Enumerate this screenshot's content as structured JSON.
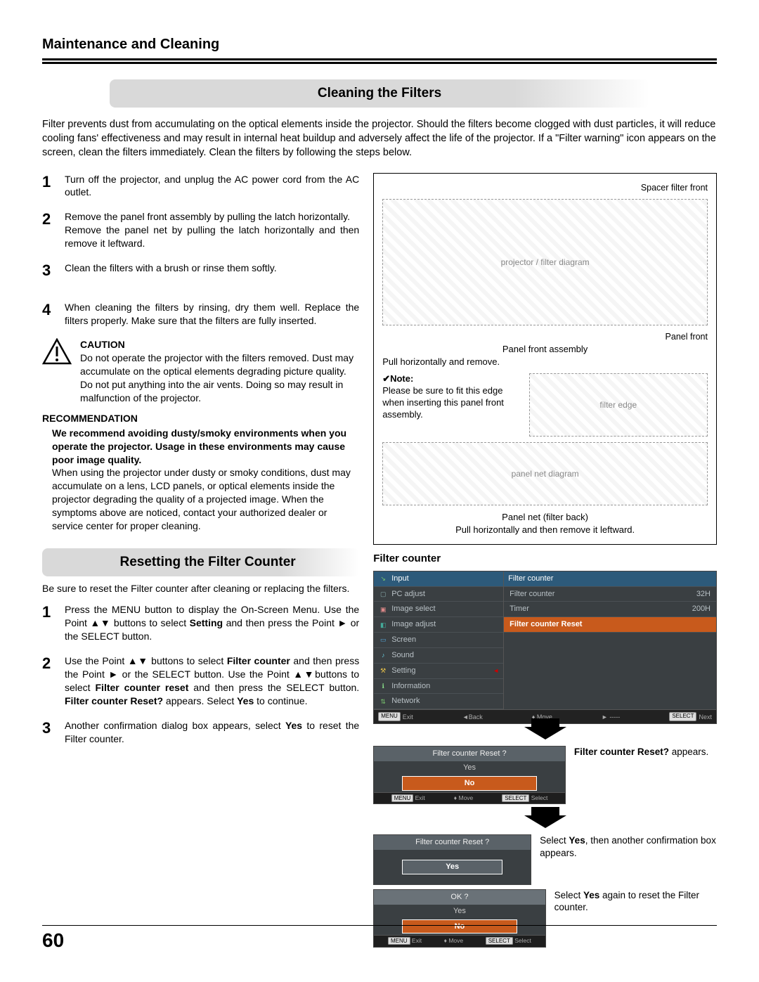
{
  "page": {
    "header": "Maintenance and Cleaning",
    "page_number": "60"
  },
  "section1": {
    "heading": "Cleaning the Filters",
    "intro": "Filter prevents dust from accumulating on the optical elements inside the projector. Should the filters become clogged with dust particles, it will reduce cooling fans' effectiveness and may result in internal heat buildup and adversely affect the life of the projector. If a \"Filter warning\" icon appears on the screen, clean the filters immediately. Clean the filters by following the steps below.",
    "steps": [
      {
        "n": "1",
        "text": "Turn off the projector, and unplug the AC power cord from the AC outlet."
      },
      {
        "n": "2",
        "text": "Remove the panel front assembly by pulling the latch horizontally.\nRemove the panel net  by pulling the latch horizontally and then remove it leftward."
      },
      {
        "n": "3",
        "text": "Clean the filters with a brush or rinse them softly."
      },
      {
        "n": "4",
        "text": "When cleaning the filters by rinsing, dry them well. Replace the filters properly.  Make sure that the filters are fully inserted."
      }
    ],
    "caution": {
      "title": "CAUTION",
      "text": "Do not operate the projector with the filters removed. Dust may accumulate on the optical elements degrading picture quality.\nDo not put anything into the air vents. Doing so may result in malfunction of the projector."
    },
    "recommendation": {
      "title": "RECOMMENDATION",
      "bold": "We recommend avoiding dusty/smoky environments when you operate the projector. Usage in these environments may cause poor image quality.",
      "text": "When using the projector under dusty or smoky conditions, dust may accumulate on a lens, LCD panels, or optical elements inside the projector degrading the quality of a projected image. When the symptoms above are noticed, contact your authorized dealer or service center for proper cleaning."
    }
  },
  "diagram1": {
    "label_spacer": "Spacer filter front",
    "label_panel_front": "Panel front",
    "label_assembly": "Panel front assembly",
    "label_pull1": "Pull horizontally and remove.",
    "note_label": "✔Note:",
    "note_text": "Please be sure to fit this edge when inserting this panel front assembly.",
    "label_panel_net": "Panel net (filter back)",
    "label_pull2": "Pull horizontally and then remove it leftward."
  },
  "section2": {
    "heading": "Resetting the Filter Counter",
    "intro": "Be sure to reset the Filter counter after cleaning or replacing the filters.",
    "steps": [
      {
        "n": "1",
        "pre": "Press the MENU button to display the On-Screen Menu. Use the Point ▲▼ buttons to select ",
        "b1": "Setting",
        "mid1": " and then press the Point ► or the SELECT  button."
      },
      {
        "n": "2",
        "pre": "Use the Point ▲▼ buttons to select ",
        "b1": "Filter counter",
        "mid1": " and then press the Point ► or the SELECT button. Use the Point ▲▼buttons to select ",
        "b2": "Filter counter reset",
        "mid2": " and then press the SELECT button. ",
        "b3": "Filter counter Reset?",
        "mid3": " appears. Select ",
        "b4": "Yes",
        "end": " to continue."
      },
      {
        "n": "3",
        "pre": "Another confirmation dialog box appears, select ",
        "b1": "Yes",
        "end": " to reset the Filter counter."
      }
    ]
  },
  "osd": {
    "title": "Filter counter",
    "left_items": [
      {
        "icon": "↘",
        "label": "Input",
        "color": "#7bc96f"
      },
      {
        "icon": "▢",
        "label": "PC adjust",
        "color": "#8aa"
      },
      {
        "icon": "▣",
        "label": "Image select",
        "color": "#d88"
      },
      {
        "icon": "◧",
        "label": "Image adjust",
        "color": "#4a9"
      },
      {
        "icon": "▭",
        "label": "Screen",
        "color": "#5ad"
      },
      {
        "icon": "♪",
        "label": "Sound",
        "color": "#6cd"
      },
      {
        "icon": "⚒",
        "label": "Setting",
        "color": "#e6c04a",
        "selected": true
      },
      {
        "icon": "ℹ",
        "label": "Information",
        "color": "#8d8"
      },
      {
        "icon": "⇅",
        "label": "Network",
        "color": "#7bc96f"
      }
    ],
    "right_header": "Filter counter",
    "right_items": [
      {
        "label": "Filter counter",
        "value": "32H"
      },
      {
        "label": "Timer",
        "value": "200H"
      },
      {
        "label": "Filter counter Reset",
        "value": "",
        "hl": true
      }
    ],
    "footer": {
      "a": "MENU Exit",
      "b": "◄Back",
      "c": "♦ Move",
      "d": "► -----",
      "e": "SELECT Next"
    }
  },
  "dialogs": {
    "d1": {
      "title": "Filter counter  Reset ?",
      "opt_yes": "Yes",
      "opt_no": "No",
      "side_bold": "Filter counter Reset?",
      "side_text": " appears.",
      "footer": {
        "a": "MENU Exit",
        "b": "♦ Move",
        "c": "SELECT Select"
      }
    },
    "d2": {
      "title": "Filter counter  Reset ?",
      "opt_yes": "Yes",
      "side_pre": "Select ",
      "side_b1": "Yes",
      "side_post": ", then another confirmation box appears."
    },
    "d3": {
      "title": "OK ?",
      "opt_yes": "Yes",
      "opt_no": "No",
      "side_pre": "Select ",
      "side_b1": "Yes",
      "side_post": " again to reset the Filter counter.",
      "footer": {
        "a": "MENU Exit",
        "b": "♦ Move",
        "c": "SELECT Select"
      }
    }
  },
  "colors": {
    "heading_bg": "#d9d9d9",
    "osd_bg": "#3a3f42",
    "osd_highlight": "#c85a1c",
    "osd_blue": "#2d5a7a"
  }
}
